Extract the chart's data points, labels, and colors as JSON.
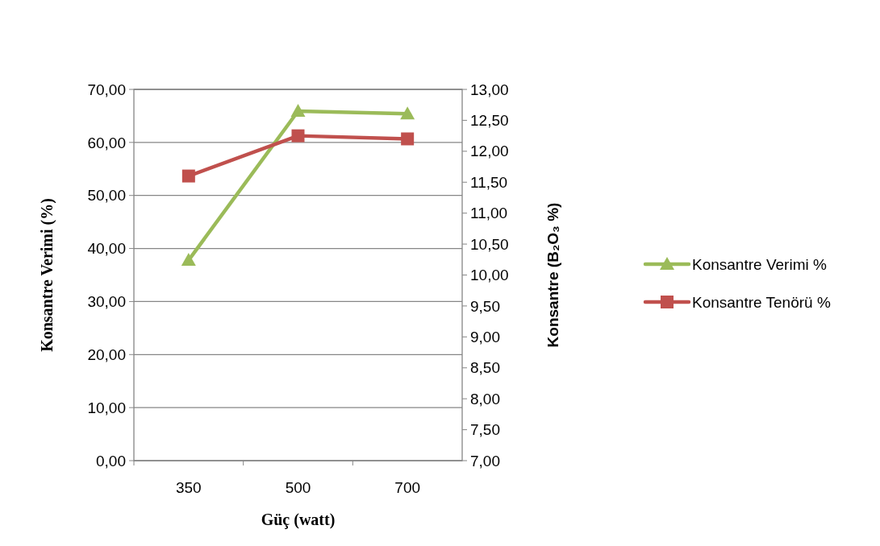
{
  "chart_data": {
    "type": "line",
    "categories": [
      "350",
      "500",
      "700"
    ],
    "xlabel": "Güç (watt)",
    "ylabel": "Konsantre Verimi (%)",
    "y2label": "Konsantre (B₂O₃ %)",
    "ylim": [
      0,
      70
    ],
    "yticks": [
      {
        "value": 0,
        "label": "0,00"
      },
      {
        "value": 10,
        "label": "10,00"
      },
      {
        "value": 20,
        "label": "20,00"
      },
      {
        "value": 30,
        "label": "30,00"
      },
      {
        "value": 40,
        "label": "40,00"
      },
      {
        "value": 50,
        "label": "50,00"
      },
      {
        "value": 60,
        "label": "60,00"
      },
      {
        "value": 70,
        "label": "70,00"
      }
    ],
    "y2lim": [
      7,
      13
    ],
    "y2ticks": [
      {
        "value": 7,
        "label": "7,00"
      },
      {
        "value": 7.5,
        "label": "7,50"
      },
      {
        "value": 8,
        "label": "8,00"
      },
      {
        "value": 8.5,
        "label": "8,50"
      },
      {
        "value": 9,
        "label": "9,00"
      },
      {
        "value": 9.5,
        "label": "9,50"
      },
      {
        "value": 10,
        "label": "10,00"
      },
      {
        "value": 10.5,
        "label": "10,50"
      },
      {
        "value": 11,
        "label": "11,00"
      },
      {
        "value": 11.5,
        "label": "11,50"
      },
      {
        "value": 12,
        "label": "12,00"
      },
      {
        "value": 12.5,
        "label": "12,50"
      },
      {
        "value": 13,
        "label": "13,00"
      }
    ],
    "grid": "y",
    "legend": "right",
    "series": [
      {
        "name": "Konsantre Verimi %",
        "color": "#9bbb59",
        "marker": "triangle",
        "values": [
          37.8,
          65.9,
          65.4
        ]
      },
      {
        "name": "Konsantre Tenörü %",
        "color": "#c0504d",
        "marker": "square",
        "axis": "y2",
        "values": [
          11.6,
          12.25,
          12.2
        ]
      }
    ]
  }
}
